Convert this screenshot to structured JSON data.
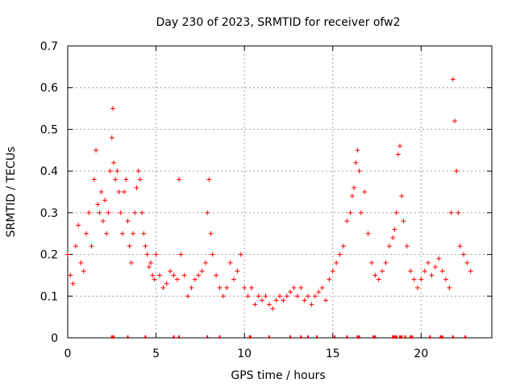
{
  "chart_data": {
    "type": "scatter",
    "title": "Day 230 of 2023, SRMTID for receiver ofw2",
    "xlabel": "GPS time / hours",
    "ylabel": "SRMTID / TECUs",
    "xlim": [
      0,
      24
    ],
    "ylim": [
      0,
      0.7
    ],
    "xticks": [
      0,
      5,
      10,
      15,
      20
    ],
    "yticks": [
      0,
      0.1,
      0.2,
      0.3,
      0.4,
      0.5,
      0.6,
      0.7
    ],
    "grid": true,
    "marker": "+",
    "marker_color": "#ff0000",
    "series": [
      {
        "name": "SRMTID",
        "x": [
          0.0,
          0.15,
          0.3,
          0.45,
          0.6,
          0.75,
          0.9,
          1.05,
          1.2,
          1.35,
          1.5,
          1.6,
          1.7,
          1.8,
          1.9,
          2.0,
          2.1,
          2.2,
          2.3,
          2.4,
          2.5,
          2.55,
          2.6,
          2.7,
          2.8,
          2.9,
          3.0,
          3.1,
          3.2,
          3.3,
          3.4,
          3.5,
          3.6,
          3.7,
          3.8,
          3.9,
          4.0,
          4.1,
          4.2,
          4.3,
          4.4,
          4.5,
          4.6,
          4.7,
          4.8,
          4.9,
          5.0,
          5.2,
          5.4,
          5.6,
          5.8,
          6.0,
          6.2,
          6.3,
          6.4,
          6.6,
          6.8,
          7.0,
          7.2,
          7.4,
          7.6,
          7.8,
          7.9,
          8.0,
          8.1,
          8.2,
          8.4,
          8.6,
          8.8,
          9.0,
          9.2,
          9.4,
          9.6,
          9.8,
          10.0,
          10.2,
          10.4,
          10.6,
          10.8,
          11.0,
          11.2,
          11.4,
          11.6,
          11.8,
          12.0,
          12.2,
          12.4,
          12.6,
          12.8,
          13.0,
          13.2,
          13.4,
          13.6,
          13.8,
          14.0,
          14.2,
          14.4,
          14.6,
          14.8,
          15.0,
          15.2,
          15.4,
          15.6,
          15.8,
          16.0,
          16.1,
          16.2,
          16.3,
          16.4,
          16.5,
          16.6,
          16.8,
          17.0,
          17.2,
          17.4,
          17.6,
          17.8,
          18.0,
          18.2,
          18.4,
          18.5,
          18.6,
          18.7,
          18.8,
          18.9,
          19.0,
          19.2,
          19.4,
          19.6,
          19.8,
          20.0,
          20.2,
          20.4,
          20.6,
          20.8,
          21.0,
          21.2,
          21.4,
          21.6,
          21.7,
          21.8,
          21.9,
          22.0,
          22.1,
          22.2,
          22.4,
          22.6,
          22.8
        ],
        "y": [
          0.2,
          0.15,
          0.13,
          0.22,
          0.27,
          0.18,
          0.16,
          0.25,
          0.3,
          0.22,
          0.38,
          0.45,
          0.32,
          0.3,
          0.35,
          0.28,
          0.33,
          0.25,
          0.3,
          0.4,
          0.48,
          0.55,
          0.42,
          0.38,
          0.4,
          0.35,
          0.3,
          0.25,
          0.35,
          0.38,
          0.28,
          0.22,
          0.18,
          0.25,
          0.3,
          0.36,
          0.4,
          0.38,
          0.3,
          0.25,
          0.22,
          0.2,
          0.17,
          0.18,
          0.15,
          0.14,
          0.2,
          0.15,
          0.12,
          0.13,
          0.16,
          0.15,
          0.14,
          0.38,
          0.2,
          0.15,
          0.1,
          0.12,
          0.14,
          0.15,
          0.16,
          0.18,
          0.3,
          0.38,
          0.25,
          0.2,
          0.15,
          0.12,
          0.1,
          0.12,
          0.18,
          0.14,
          0.16,
          0.2,
          0.12,
          0.1,
          0.12,
          0.08,
          0.1,
          0.09,
          0.1,
          0.08,
          0.07,
          0.09,
          0.1,
          0.09,
          0.1,
          0.11,
          0.12,
          0.1,
          0.12,
          0.09,
          0.1,
          0.08,
          0.1,
          0.11,
          0.12,
          0.09,
          0.14,
          0.16,
          0.18,
          0.2,
          0.22,
          0.28,
          0.3,
          0.34,
          0.36,
          0.42,
          0.45,
          0.4,
          0.3,
          0.35,
          0.25,
          0.18,
          0.15,
          0.14,
          0.16,
          0.18,
          0.22,
          0.24,
          0.26,
          0.3,
          0.44,
          0.46,
          0.34,
          0.28,
          0.22,
          0.16,
          0.14,
          0.12,
          0.14,
          0.16,
          0.18,
          0.15,
          0.17,
          0.19,
          0.16,
          0.14,
          0.12,
          0.3,
          0.62,
          0.52,
          0.4,
          0.3,
          0.22,
          0.2,
          0.18,
          0.16
        ]
      }
    ],
    "tick_marks_x": [
      2.5,
      2.6,
      3.4,
      4.4,
      6.0,
      6.3,
      7.9,
      8.6,
      10.3,
      10.35,
      11.4,
      12.6,
      13.2,
      13.6,
      14.1,
      15.1,
      15.8,
      16.4,
      16.5,
      17.3,
      17.4,
      18.4,
      18.5,
      18.6,
      18.8,
      18.9,
      19.1,
      19.4,
      19.5,
      20.5,
      21.1,
      21.2,
      21.8,
      22.5
    ]
  }
}
